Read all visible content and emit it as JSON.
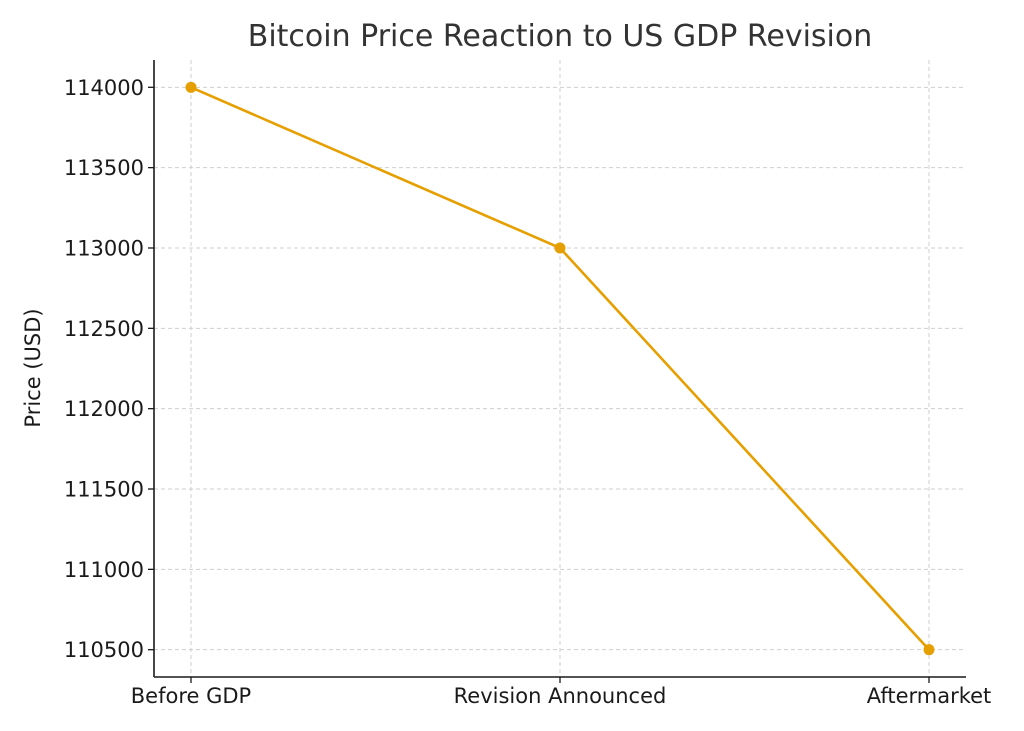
{
  "chart_data": {
    "type": "line",
    "title": "Bitcoin Price Reaction to US GDP Revision",
    "xlabel": "",
    "ylabel": "Price (USD)",
    "categories": [
      "Before GDP",
      "Revision Announced",
      "Aftermarket"
    ],
    "series": [
      {
        "values": [
          114000,
          113000,
          110500
        ],
        "color": "#e69f00",
        "marker": "circle"
      }
    ],
    "y_ticks": [
      110500,
      111000,
      111500,
      112000,
      112500,
      113000,
      113500,
      114000
    ],
    "ylim": [
      110330,
      114170
    ],
    "grid": true
  }
}
